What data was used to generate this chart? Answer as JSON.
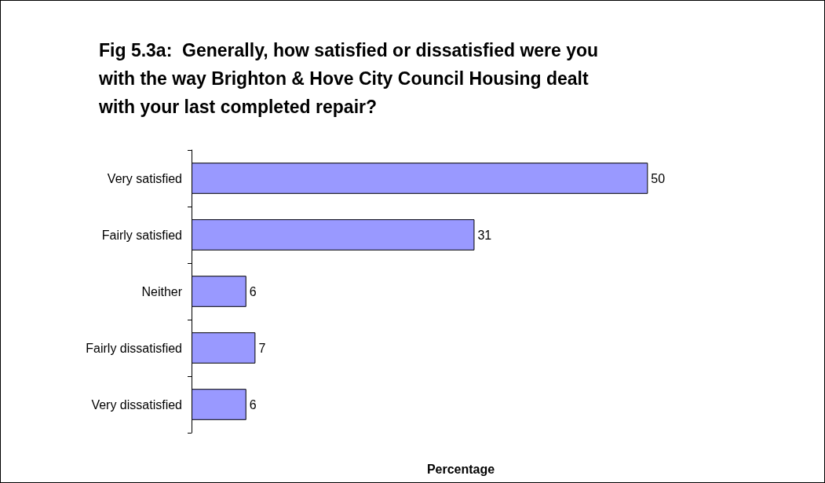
{
  "chart_data": {
    "type": "bar",
    "orientation": "horizontal",
    "title": "Fig 5.3a:  Generally, how satisfied or dissatisfied were you with the way Brighton & Hove City Council Housing dealt with your last completed repair?",
    "xlabel": "Percentage",
    "categories": [
      "Very satisfied",
      "Fairly satisfied",
      "Neither",
      "Fairly dissatisfied",
      "Very dissatisfied"
    ],
    "values": [
      50,
      31,
      6,
      7,
      6
    ],
    "color": "#9999ff",
    "data_labels": true,
    "tick_labels": "y",
    "grid": false
  }
}
